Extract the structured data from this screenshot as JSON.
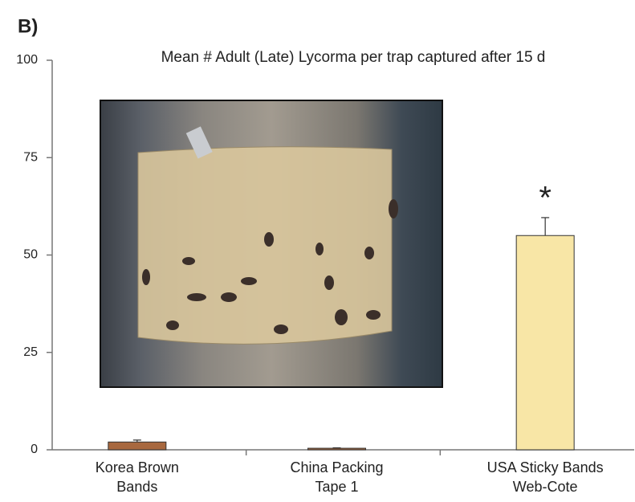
{
  "chart_data": {
    "type": "bar",
    "panel_label": "B)",
    "title": "Mean # Adult (Late) Lycorma per trap captured after 15 d",
    "categories": [
      "Korea Brown\nBands",
      "China Packing\nTape 1",
      "USA Sticky Bands\nWeb-Cote"
    ],
    "values": [
      2,
      0.4,
      55
    ],
    "errors": [
      0.5,
      0.1,
      4.6
    ],
    "colors": [
      "#a8683f",
      "#a8683f",
      "#f8e6a6"
    ],
    "annotations": [
      {
        "category": 2,
        "text": "*"
      }
    ],
    "ylim": [
      0,
      100
    ],
    "yticks": [
      0,
      25,
      50,
      75,
      100
    ],
    "grid": false
  }
}
